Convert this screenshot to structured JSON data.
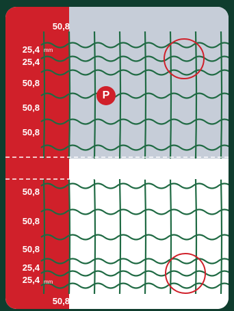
{
  "badge_letter": "P",
  "top_panel": {
    "labels": [
      "50,8",
      "25,4",
      "25,4",
      "50,8",
      "50,8",
      "50,8"
    ],
    "unit": "mm"
  },
  "bottom_panel": {
    "labels": [
      "50,8",
      "50,8",
      "50,8",
      "25,4",
      "25,4",
      "50,8"
    ],
    "unit": "mm"
  },
  "colors": {
    "background": "#0f3d2e",
    "red_band": "#d0202a",
    "wire": "#1f6a43",
    "top_panel_bg": "#c6cdd8",
    "divider": "#ffffff",
    "highlight_circle": "#d0202a"
  }
}
